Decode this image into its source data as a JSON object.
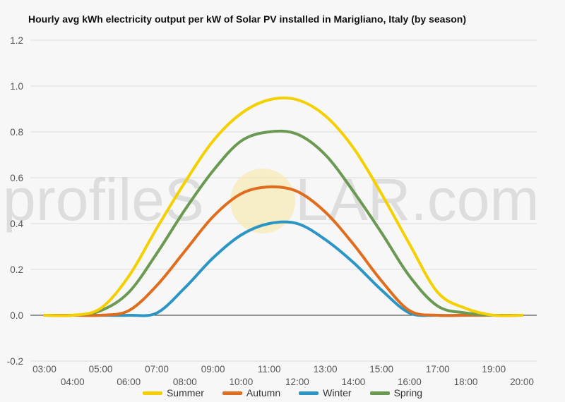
{
  "chart_data": {
    "type": "line",
    "title": "Hourly avg kWh electricity output per kW of Solar PV installed in Marigliano, Italy (by season)",
    "xlabel": "",
    "ylabel": "",
    "x": [
      "03:00",
      "04:00",
      "05:00",
      "06:00",
      "07:00",
      "08:00",
      "09:00",
      "10:00",
      "11:00",
      "12:00",
      "13:00",
      "14:00",
      "15:00",
      "16:00",
      "17:00",
      "18:00",
      "19:00",
      "20:00"
    ],
    "x_tick_labels": [
      "03:00",
      "04:00",
      "05:00",
      "06:00",
      "07:00",
      "08:00",
      "09:00",
      "10:00",
      "11:00",
      "12:00",
      "13:00",
      "14:00",
      "15:00",
      "16:00",
      "17:00",
      "18:00",
      "19:00",
      "20:00"
    ],
    "ylim": [
      -0.2,
      1.2
    ],
    "y_ticks": [
      "-0.2",
      "0.0",
      "0.2",
      "0.4",
      "0.6",
      "0.8",
      "1.0",
      "1.2"
    ],
    "grid": true,
    "legend_position": "bottom",
    "series": [
      {
        "name": "Summer",
        "color": "#f5d000",
        "values": [
          0,
          0,
          0.03,
          0.17,
          0.38,
          0.58,
          0.76,
          0.88,
          0.94,
          0.94,
          0.87,
          0.73,
          0.53,
          0.31,
          0.1,
          0.03,
          0.0,
          0
        ]
      },
      {
        "name": "Autumn",
        "color": "#e06d1e",
        "values": [
          0,
          0,
          0,
          0.02,
          0.13,
          0.28,
          0.43,
          0.53,
          0.56,
          0.54,
          0.45,
          0.31,
          0.15,
          0.02,
          0,
          0,
          0,
          0
        ]
      },
      {
        "name": "Winter",
        "color": "#2b96c5",
        "values": [
          0,
          0,
          0,
          0,
          0.01,
          0.12,
          0.25,
          0.35,
          0.4,
          0.4,
          0.33,
          0.23,
          0.11,
          0.01,
          0,
          0,
          0,
          0
        ]
      },
      {
        "name": "Spring",
        "color": "#6a9a52",
        "values": [
          0,
          0,
          0.02,
          0.1,
          0.27,
          0.46,
          0.63,
          0.76,
          0.8,
          0.79,
          0.7,
          0.54,
          0.36,
          0.17,
          0.04,
          0.01,
          0.0,
          0
        ]
      }
    ]
  },
  "watermark": {
    "text_left": "profileS",
    "text_right": "LAR.com"
  }
}
